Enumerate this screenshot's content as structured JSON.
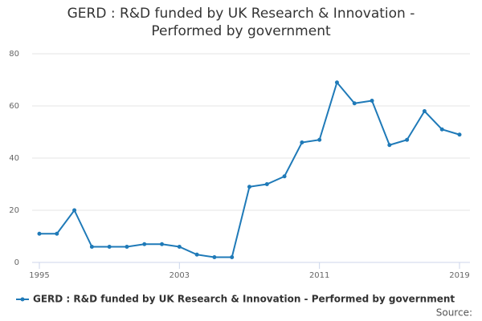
{
  "chart_data": {
    "type": "line",
    "title": "GERD : R&D funded by UK Research & Innovation - Performed by government",
    "x": [
      1995,
      1996,
      1997,
      1998,
      1999,
      2000,
      2001,
      2002,
      2003,
      2004,
      2005,
      2006,
      2007,
      2008,
      2009,
      2010,
      2011,
      2012,
      2013,
      2014,
      2015,
      2016,
      2017,
      2018,
      2019
    ],
    "series": [
      {
        "name": "GERD : R&D funded by UK Research & Innovation - Performed by government",
        "color": "#1f7ab8",
        "values": [
          11,
          11,
          20,
          6,
          6,
          6,
          7,
          7,
          6,
          3,
          2,
          2,
          29,
          30,
          33,
          46,
          47,
          69,
          61,
          62,
          45,
          47,
          58,
          51,
          49
        ]
      }
    ],
    "xlim": [
      1995,
      2019
    ],
    "xticks": [
      1995,
      2003,
      2011,
      2019
    ],
    "ylim": [
      0,
      80
    ],
    "yticks": [
      0,
      20,
      40,
      60,
      80
    ],
    "grid": true,
    "source": "Source:"
  }
}
